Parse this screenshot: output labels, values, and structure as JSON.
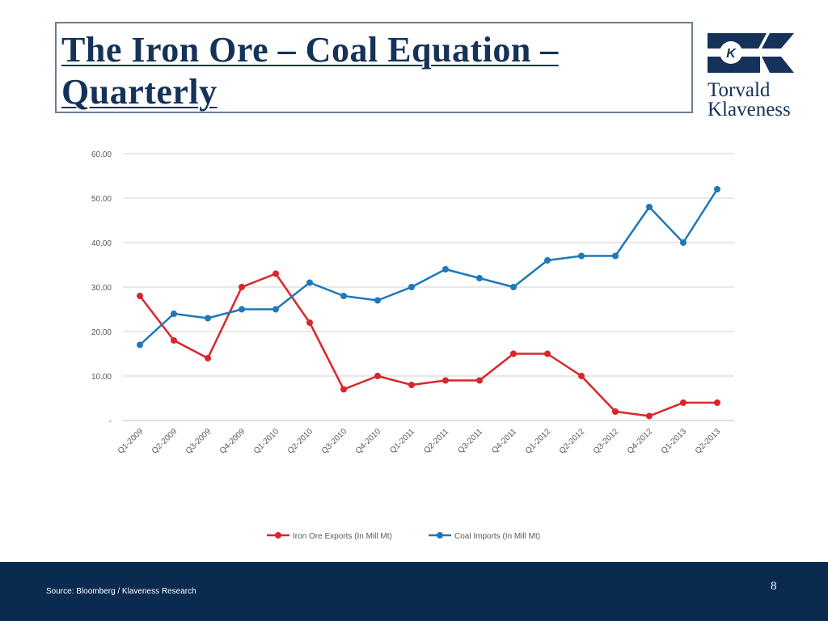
{
  "slide": {
    "title_line1": "The Iron Ore – Coal Equation –",
    "title_line2": "Quarterly",
    "logo_line1": "Torvald",
    "logo_line2": "Klaveness",
    "source": "Source: Bloomberg / Klaveness Research",
    "page_number": "8"
  },
  "colors": {
    "title": "#14325a",
    "footer": "#0b2a50",
    "iron": "#d9262b",
    "coal": "#1f78b8",
    "grid": "#d0d0d0"
  },
  "chart_data": {
    "type": "line",
    "categories": [
      "Q1-2009",
      "Q2-2009",
      "Q3-2009",
      "Q4-2009",
      "Q1-2010",
      "Q2-2010",
      "Q3-2010",
      "Q4-2010",
      "Q1-2011",
      "Q2-2011",
      "Q3-2011",
      "Q4-2011",
      "Q1-2012",
      "Q2-2012",
      "Q3-2012",
      "Q4-2012",
      "Q1-2013",
      "Q2-2013"
    ],
    "series": [
      {
        "name": "Iron Ore Exports (In Mill Mt)",
        "color": "#d9262b",
        "values": [
          28,
          18,
          14,
          30,
          33,
          22,
          7,
          10,
          8,
          9,
          9,
          15,
          15,
          10,
          2,
          1,
          4,
          4
        ]
      },
      {
        "name": "Coal Imports (In Mill Mt)",
        "color": "#1f78b8",
        "values": [
          17,
          24,
          23,
          25,
          25,
          31,
          28,
          27,
          30,
          34,
          32,
          30,
          36,
          37,
          37,
          48,
          40,
          52
        ]
      }
    ],
    "ylim": [
      0,
      60
    ],
    "yticks": [
      0,
      10,
      20,
      30,
      40,
      50,
      60
    ],
    "ytick_labels": [
      "-",
      "10.00",
      "20.00",
      "30.00",
      "40.00",
      "50.00",
      "60.00"
    ],
    "grid": true,
    "legend_position": "bottom"
  }
}
